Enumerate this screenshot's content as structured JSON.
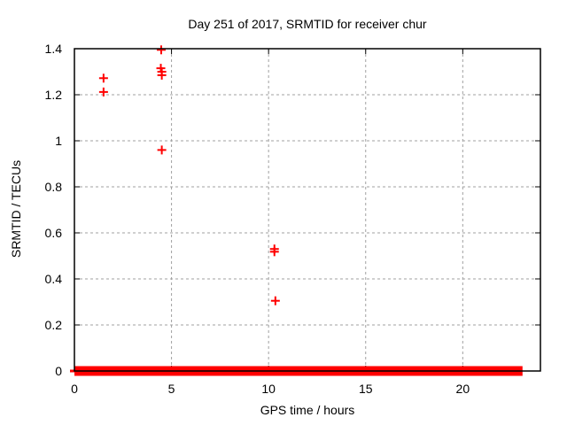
{
  "window": {
    "background": "#ffffff"
  },
  "colors": {
    "marker": "#ff0000",
    "grid": "#a0a0a0",
    "axis": "#000000",
    "text": "#000000",
    "background": "#ffffff"
  },
  "chart_data": {
    "type": "scatter",
    "title": "Day 251 of 2017, SRMTID for receiver chur",
    "xlabel": "GPS time / hours",
    "ylabel": "SRMTID / TECUs",
    "xlim": [
      0,
      24
    ],
    "ylim": [
      0,
      1.4
    ],
    "xticks": {
      "values": [
        0,
        5,
        10,
        15,
        20
      ],
      "labels": [
        "0",
        "5",
        "10",
        "15",
        "20"
      ]
    },
    "yticks": {
      "values": [
        0,
        0.2,
        0.4,
        0.6,
        0.8,
        1.0,
        1.2,
        1.4
      ],
      "labels": [
        "0",
        "0.2",
        "0.4",
        "0.6",
        "0.8",
        "1",
        "1.2",
        "1.4"
      ]
    },
    "grid": true,
    "legend": "none",
    "marker": "plus",
    "marker_color": "#ff0000",
    "series": [
      {
        "name": "srmtid-points",
        "points": [
          [
            1.5,
            1.272
          ],
          [
            1.5,
            1.212
          ],
          [
            4.47,
            1.395
          ],
          [
            4.45,
            1.315
          ],
          [
            4.5,
            1.3
          ],
          [
            4.5,
            1.285
          ],
          [
            4.5,
            0.96
          ],
          [
            10.3,
            0.53
          ],
          [
            10.3,
            0.518
          ],
          [
            10.35,
            0.305
          ]
        ]
      },
      {
        "name": "baseline-dense-markers",
        "description": "continuous band of densely overlapping plus markers at y=0",
        "y": 0,
        "x_start": 0,
        "x_end": 22.85
      }
    ]
  }
}
